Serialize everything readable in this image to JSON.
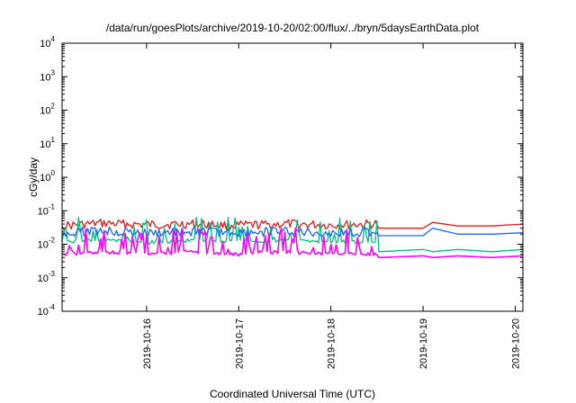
{
  "chart_data": {
    "type": "line",
    "title": "/data/run/goesPlots/archive/2019-10-20/02:00/flux/../bryn/5daysEarthData.plot",
    "xlabel": "Coordinated Universal Time (UTC)",
    "ylabel": "cGy/day",
    "yscale": "log",
    "ylim": [
      0.0001,
      10000
    ],
    "xlim": [
      "2019-10-15T02:00",
      "2019-10-20T02:00"
    ],
    "y_ticks": [
      {
        "base": "10",
        "exp": "-4",
        "value": 0.0001
      },
      {
        "base": "10",
        "exp": "-3",
        "value": 0.001
      },
      {
        "base": "10",
        "exp": "-2",
        "value": 0.01
      },
      {
        "base": "10",
        "exp": "-1",
        "value": 0.1
      },
      {
        "base": "10",
        "exp": "0",
        "value": 1
      },
      {
        "base": "10",
        "exp": "1",
        "value": 10
      },
      {
        "base": "10",
        "exp": "2",
        "value": 100
      },
      {
        "base": "10",
        "exp": "3",
        "value": 1000
      },
      {
        "base": "10",
        "exp": "4",
        "value": 10000
      }
    ],
    "x_ticks": [
      "2019-10-16",
      "2019-10-17",
      "2019-10-18",
      "2019-10-19",
      "2019-10-20"
    ],
    "grid": false,
    "legend": "none",
    "series": [
      {
        "color": "#e41a1c",
        "points": [
          [
            "2019-10-15T02:00",
            0.035
          ],
          [
            "2019-10-15T12:00",
            0.042
          ],
          [
            "2019-10-16T00:00",
            0.038
          ],
          [
            "2019-10-16T12:00",
            0.04
          ],
          [
            "2019-10-17T00:00",
            0.036
          ],
          [
            "2019-10-17T12:00",
            0.04
          ],
          [
            "2019-10-18T00:00",
            0.037
          ],
          [
            "2019-10-18T12:00",
            0.04
          ],
          [
            "2019-10-18T12:30",
            0.03
          ],
          [
            "2019-10-19T00:00",
            0.03
          ],
          [
            "2019-10-19T02:30",
            0.045
          ],
          [
            "2019-10-19T09:00",
            0.035
          ],
          [
            "2019-10-19T18:00",
            0.035
          ],
          [
            "2019-10-20T02:00",
            0.04
          ]
        ]
      },
      {
        "color": "#00c080",
        "points": [
          [
            "2019-10-15T02:00",
            0.012
          ],
          [
            "2019-10-15T12:00",
            0.014
          ],
          [
            "2019-10-16T00:00",
            0.011
          ],
          [
            "2019-10-16T12:00",
            0.013
          ],
          [
            "2019-10-17T00:00",
            0.012
          ],
          [
            "2019-10-17T12:00",
            0.013
          ],
          [
            "2019-10-18T00:00",
            0.011
          ],
          [
            "2019-10-18T12:00",
            0.012
          ],
          [
            "2019-10-18T12:30",
            0.006
          ],
          [
            "2019-10-19T00:00",
            0.007
          ],
          [
            "2019-10-19T02:30",
            0.006
          ],
          [
            "2019-10-19T09:00",
            0.007
          ],
          [
            "2019-10-19T18:00",
            0.006
          ],
          [
            "2019-10-20T02:00",
            0.007
          ]
        ]
      },
      {
        "color": "#1e64ff",
        "points": [
          [
            "2019-10-15T02:00",
            0.022
          ],
          [
            "2019-10-15T12:00",
            0.025
          ],
          [
            "2019-10-16T00:00",
            0.021
          ],
          [
            "2019-10-16T12:00",
            0.024
          ],
          [
            "2019-10-17T00:00",
            0.022
          ],
          [
            "2019-10-17T12:00",
            0.024
          ],
          [
            "2019-10-18T00:00",
            0.021
          ],
          [
            "2019-10-18T12:00",
            0.023
          ],
          [
            "2019-10-18T12:30",
            0.018
          ],
          [
            "2019-10-19T00:00",
            0.018
          ],
          [
            "2019-10-19T02:30",
            0.03
          ],
          [
            "2019-10-19T09:00",
            0.02
          ],
          [
            "2019-10-19T18:00",
            0.02
          ],
          [
            "2019-10-20T02:00",
            0.022
          ]
        ]
      },
      {
        "color": "#ff00ff",
        "points": [
          [
            "2019-10-15T02:00",
            0.005
          ],
          [
            "2019-10-15T12:00",
            0.006
          ],
          [
            "2019-10-16T00:00",
            0.005
          ],
          [
            "2019-10-16T12:00",
            0.006
          ],
          [
            "2019-10-17T00:00",
            0.005
          ],
          [
            "2019-10-17T12:00",
            0.006
          ],
          [
            "2019-10-18T00:00",
            0.005
          ],
          [
            "2019-10-18T12:00",
            0.005
          ],
          [
            "2019-10-18T12:30",
            0.004
          ],
          [
            "2019-10-19T00:00",
            0.0045
          ],
          [
            "2019-10-19T02:30",
            0.004
          ],
          [
            "2019-10-19T09:00",
            0.0045
          ],
          [
            "2019-10-19T18:00",
            0.004
          ],
          [
            "2019-10-20T02:00",
            0.0045
          ]
        ]
      }
    ]
  }
}
